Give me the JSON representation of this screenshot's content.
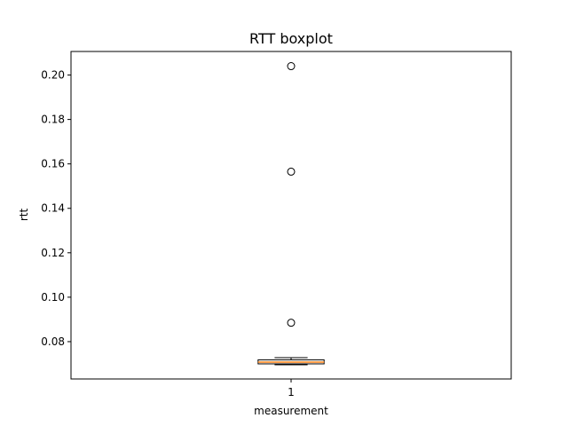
{
  "chart_data": {
    "type": "boxplot",
    "title": "RTT boxplot",
    "xlabel": "measurement",
    "ylabel": "rtt",
    "categories": [
      "1"
    ],
    "ylim": [
      0.0632,
      0.2106
    ],
    "yticks": [
      0.08,
      0.1,
      0.12,
      0.14,
      0.16,
      0.18,
      0.2
    ],
    "ytick_labels": [
      "0.08",
      "0.10",
      "0.12",
      "0.14",
      "0.16",
      "0.18",
      "0.20"
    ],
    "boxes": [
      {
        "category": "1",
        "whisker_low": 0.0696,
        "q1": 0.07,
        "median": 0.0708,
        "q3": 0.0718,
        "whisker_high": 0.0728,
        "outliers": [
          0.0885,
          0.1565,
          0.204
        ]
      }
    ],
    "grid": false,
    "colors": {
      "box": "#000000",
      "median": "#ff7f0e",
      "outlier": "#000000"
    }
  }
}
